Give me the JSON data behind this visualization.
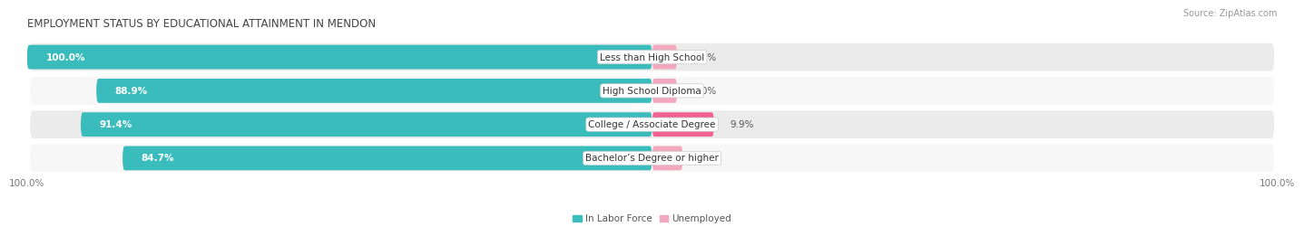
{
  "title": "EMPLOYMENT STATUS BY EDUCATIONAL ATTAINMENT IN MENDON",
  "source": "Source: ZipAtlas.com",
  "categories": [
    "Less than High School",
    "High School Diploma",
    "College / Associate Degree",
    "Bachelor’s Degree or higher"
  ],
  "labor_force": [
    100.0,
    88.9,
    91.4,
    84.7
  ],
  "unemployed": [
    0.0,
    0.0,
    9.9,
    4.9
  ],
  "labor_force_color": "#3BBCBC",
  "unemployed_color_low": "#F4A8C0",
  "unemployed_color_high": "#F06090",
  "row_bg_color_odd": "#EBEBEB",
  "row_bg_color_even": "#F7F7F7",
  "title_fontsize": 8.5,
  "label_fontsize": 7.5,
  "value_fontsize": 7.5,
  "tick_fontsize": 7.5,
  "source_fontsize": 7.0,
  "left_axis_label": "100.0%",
  "right_axis_label": "100.0%"
}
